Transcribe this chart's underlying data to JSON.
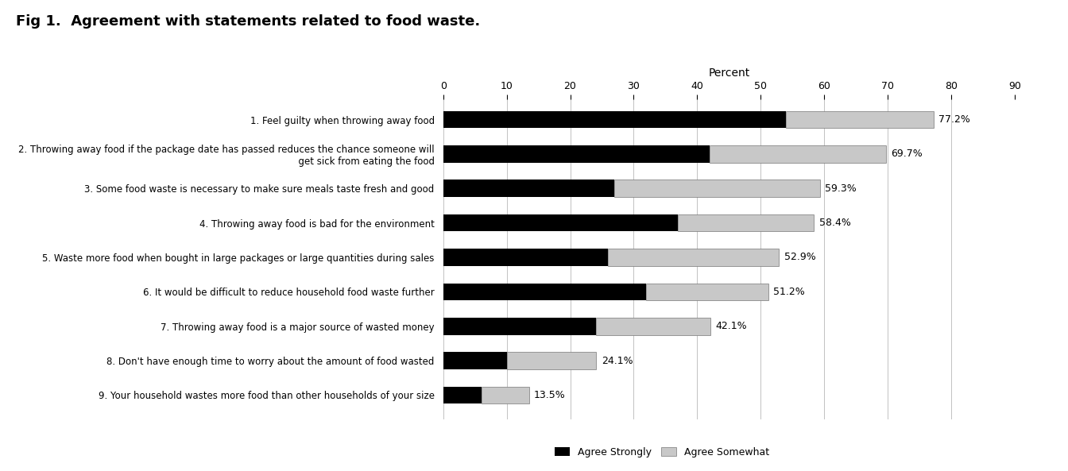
{
  "title": "Fig 1.  Agreement with statements related to food waste.",
  "xlabel": "Percent",
  "categories": [
    "1. Feel guilty when throwing away food",
    "2. Throwing away food if the package date has passed reduces the chance someone will\n      get sick from eating the food",
    "3. Some food waste is necessary to make sure meals taste fresh and good",
    "4. Throwing away food is bad for the environment",
    "5. Waste more food when bought in large packages or large quantities during sales",
    "6. It would be difficult to reduce household food waste further",
    "7. Throwing away food is a major source of wasted money",
    "8. Don't have enough time to worry about the amount of food wasted",
    "9. Your household wastes more food than other households of your size"
  ],
  "agree_strongly": [
    54.0,
    42.0,
    27.0,
    37.0,
    26.0,
    32.0,
    24.0,
    10.0,
    6.0
  ],
  "agree_somewhat": [
    23.2,
    27.7,
    32.3,
    21.4,
    26.9,
    19.2,
    18.1,
    14.1,
    7.5
  ],
  "totals": [
    "77.2%",
    "69.7%",
    "59.3%",
    "58.4%",
    "52.9%",
    "51.2%",
    "42.1%",
    "24.1%",
    "13.5%"
  ],
  "color_strongly": "#000000",
  "color_somewhat": "#c8c8c8",
  "xlim": [
    0,
    90
  ],
  "xticks": [
    0,
    10,
    20,
    30,
    40,
    50,
    60,
    70,
    80,
    90
  ],
  "bar_height": 0.5,
  "background_color": "#ffffff",
  "legend_labels": [
    "Agree Strongly",
    "Agree Somewhat"
  ]
}
